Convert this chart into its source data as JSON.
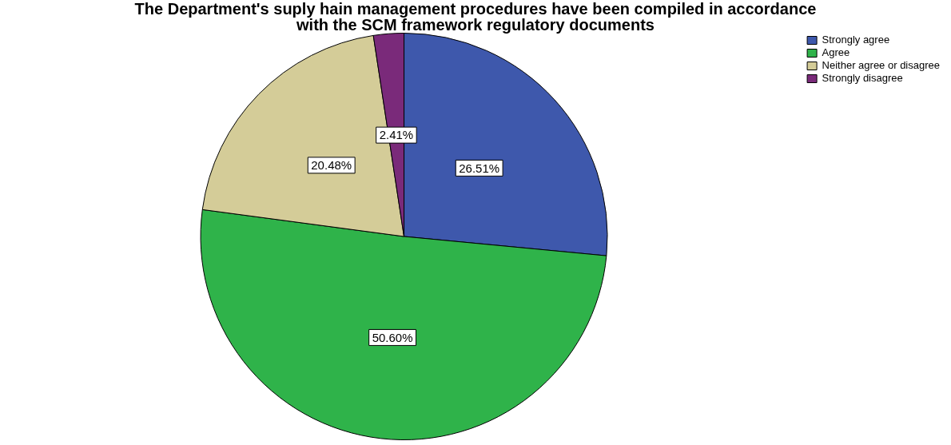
{
  "chart_data": {
    "type": "pie",
    "title": "The Department's suply hain management procedures have been compiled in accordance with the SCM framework regulatory documents",
    "categories": [
      "Strongly agree",
      "Agree",
      "Neither agree or disagree",
      "Strongly disagree"
    ],
    "values": [
      26.51,
      50.6,
      20.48,
      2.41
    ],
    "colors": [
      "#3e58ac",
      "#2fb34a",
      "#d4cc98",
      "#7a2a7a"
    ],
    "value_labels": [
      "26.51%",
      "50.60%",
      "20.48%",
      "2.41%"
    ],
    "legend": "top right"
  }
}
